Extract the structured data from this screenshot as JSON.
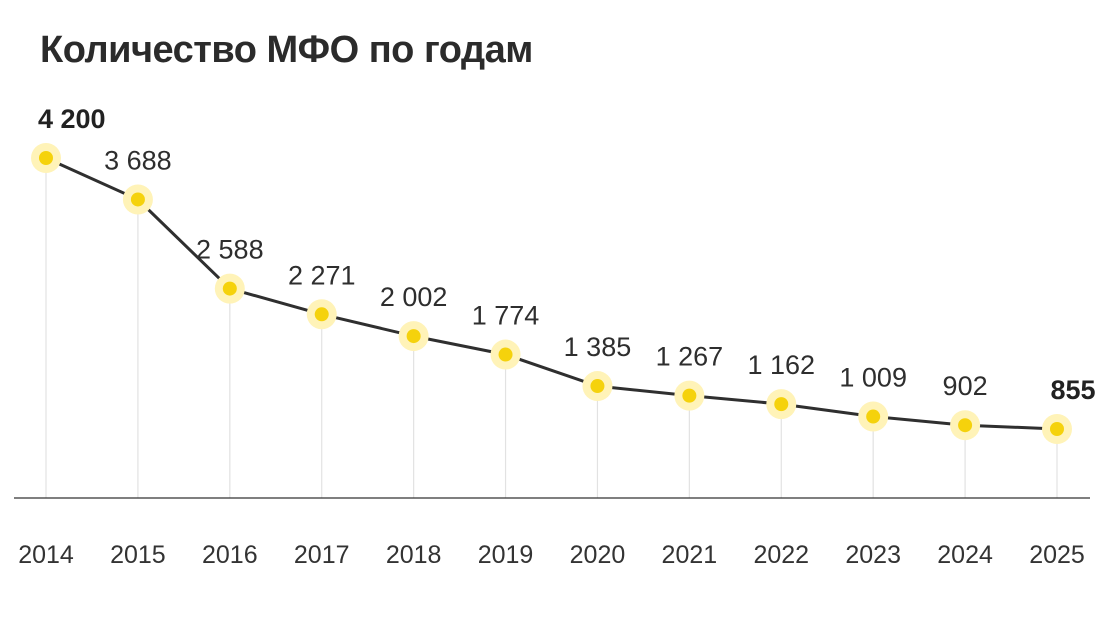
{
  "chart_data": {
    "type": "line",
    "title": "Количество МФО по годам",
    "xlabel": "",
    "ylabel": "",
    "ylim": [
      0,
      5000
    ],
    "grid": "vertical",
    "legend": "none",
    "categories": [
      "2014",
      "2015",
      "2016",
      "2017",
      "2018",
      "2019",
      "2020",
      "2021",
      "2022",
      "2023",
      "2024",
      "2025"
    ],
    "values": [
      4200,
      3688,
      2588,
      2271,
      2002,
      1774,
      1385,
      1267,
      1162,
      1009,
      902,
      855
    ],
    "value_labels": [
      "4 200",
      "3 688",
      "2 588",
      "2 271",
      "2 002",
      "1 774",
      "1 385",
      "1 267",
      "1 162",
      "1 009",
      "902",
      "855"
    ],
    "highlighted_labels": [
      "2014",
      "2025"
    ],
    "colors": {
      "line": "#2f2f2f",
      "marker": "#f5d20c",
      "marker_halo": "#fff3b8",
      "grid": "#e2e2e2"
    }
  }
}
